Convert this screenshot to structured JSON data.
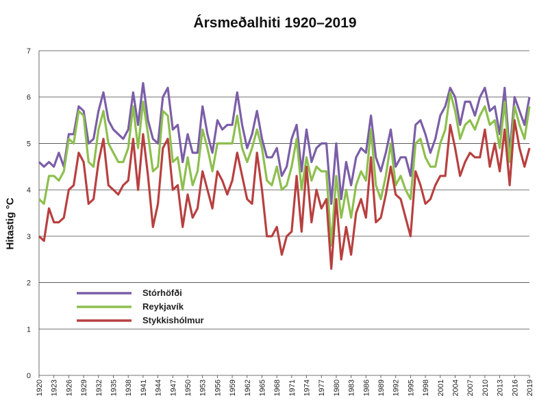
{
  "chart_data": {
    "type": "line",
    "title": "Ársmeðalhiti 1920–2019",
    "ylabel": "Hitastig °C",
    "xlabel": "",
    "ylim": [
      0,
      7
    ],
    "yticks": [
      0,
      1,
      2,
      3,
      4,
      5,
      6,
      7
    ],
    "xlim": [
      1920,
      2019
    ],
    "xticks": [
      1920,
      1923,
      1926,
      1929,
      1932,
      1935,
      1938,
      1941,
      1944,
      1947,
      1950,
      1953,
      1956,
      1959,
      1962,
      1965,
      1968,
      1971,
      1974,
      1977,
      1980,
      1983,
      1986,
      1989,
      1992,
      1995,
      1998,
      2001,
      2004,
      2007,
      2010,
      2013,
      2016,
      2019
    ],
    "grid": "horizontal",
    "legend_position": "bottom-left",
    "x": [
      1920,
      1921,
      1922,
      1923,
      1924,
      1925,
      1926,
      1927,
      1928,
      1929,
      1930,
      1931,
      1932,
      1933,
      1934,
      1935,
      1936,
      1937,
      1938,
      1939,
      1940,
      1941,
      1942,
      1943,
      1944,
      1945,
      1946,
      1947,
      1948,
      1949,
      1950,
      1951,
      1952,
      1953,
      1954,
      1955,
      1956,
      1957,
      1958,
      1959,
      1960,
      1961,
      1962,
      1963,
      1964,
      1965,
      1966,
      1967,
      1968,
      1969,
      1970,
      1971,
      1972,
      1973,
      1974,
      1975,
      1976,
      1977,
      1978,
      1979,
      1980,
      1981,
      1982,
      1983,
      1984,
      1985,
      1986,
      1987,
      1988,
      1989,
      1990,
      1991,
      1992,
      1993,
      1994,
      1995,
      1996,
      1997,
      1998,
      1999,
      2000,
      2001,
      2002,
      2003,
      2004,
      2005,
      2006,
      2007,
      2008,
      2009,
      2010,
      2011,
      2012,
      2013,
      2014,
      2015,
      2016,
      2017,
      2018,
      2019
    ],
    "series": [
      {
        "name": "Stórhöfði",
        "color": "#7b5ea7",
        "values": [
          4.6,
          4.5,
          4.6,
          4.5,
          4.8,
          4.5,
          5.2,
          5.2,
          5.8,
          5.7,
          5.0,
          5.1,
          5.7,
          6.1,
          5.5,
          5.3,
          5.2,
          5.1,
          5.3,
          6.1,
          5.4,
          6.3,
          5.5,
          5.1,
          5.0,
          6.0,
          6.2,
          5.3,
          5.4,
          4.6,
          5.2,
          4.8,
          4.8,
          5.8,
          5.2,
          4.8,
          5.5,
          5.3,
          5.4,
          5.4,
          6.1,
          5.4,
          4.9,
          5.2,
          5.7,
          5.1,
          4.7,
          4.7,
          4.9,
          4.3,
          4.5,
          5.1,
          5.4,
          4.4,
          5.3,
          4.6,
          4.9,
          5.0,
          5.0,
          3.7,
          5.0,
          3.8,
          4.6,
          4.1,
          4.7,
          4.9,
          4.8,
          5.6,
          4.7,
          4.4,
          4.8,
          5.3,
          4.5,
          4.7,
          4.7,
          4.3,
          5.4,
          5.5,
          5.2,
          4.8,
          5.1,
          5.6,
          5.8,
          6.2,
          6.0,
          5.4,
          5.9,
          5.9,
          5.6,
          6.0,
          6.2,
          5.7,
          5.8,
          5.2,
          6.2,
          4.8,
          6.0,
          5.7,
          5.4,
          6.0
        ]
      },
      {
        "name": "Reykjavík",
        "color": "#8dbf4e",
        "values": [
          3.8,
          3.7,
          4.3,
          4.3,
          4.2,
          4.4,
          5.1,
          5.0,
          5.7,
          5.6,
          4.6,
          4.5,
          5.3,
          5.7,
          5.0,
          4.8,
          4.6,
          4.6,
          4.9,
          5.8,
          4.9,
          5.9,
          5.2,
          4.4,
          4.5,
          5.7,
          5.6,
          4.6,
          4.7,
          4.0,
          4.7,
          4.1,
          4.4,
          5.3,
          4.9,
          4.4,
          5.0,
          5.0,
          5.0,
          5.0,
          5.6,
          4.9,
          4.6,
          4.9,
          5.3,
          4.9,
          4.2,
          4.1,
          4.5,
          4.0,
          4.1,
          4.5,
          5.1,
          4.0,
          4.7,
          4.2,
          4.5,
          4.4,
          4.4,
          2.8,
          4.3,
          3.4,
          4.0,
          3.4,
          4.1,
          4.4,
          4.2,
          5.3,
          4.1,
          3.8,
          4.3,
          5.0,
          4.1,
          4.3,
          4.0,
          3.8,
          5.0,
          5.1,
          4.7,
          4.5,
          4.5,
          5.0,
          5.3,
          6.1,
          5.7,
          5.1,
          5.4,
          5.5,
          5.3,
          5.6,
          5.8,
          5.4,
          5.5,
          4.9,
          5.9,
          4.6,
          5.8,
          5.4,
          5.1,
          5.8
        ]
      },
      {
        "name": "Stykkishólmur",
        "color": "#b84040",
        "values": [
          3.0,
          2.9,
          3.6,
          3.3,
          3.3,
          3.4,
          4.0,
          4.1,
          4.8,
          4.6,
          3.7,
          3.8,
          4.6,
          5.1,
          4.1,
          4.0,
          3.9,
          4.1,
          4.2,
          5.1,
          4.0,
          5.2,
          4.3,
          3.2,
          3.7,
          4.9,
          5.1,
          4.0,
          4.1,
          3.2,
          3.9,
          3.4,
          3.6,
          4.4,
          4.0,
          3.6,
          4.4,
          4.2,
          3.9,
          4.2,
          4.8,
          4.3,
          3.8,
          3.7,
          4.8,
          4.0,
          3.0,
          3.0,
          3.2,
          2.6,
          3.0,
          3.1,
          4.3,
          3.1,
          4.5,
          3.3,
          4.0,
          3.6,
          3.8,
          2.3,
          3.8,
          2.5,
          3.2,
          2.6,
          3.5,
          3.8,
          3.4,
          4.7,
          3.3,
          3.4,
          3.9,
          4.5,
          3.9,
          3.8,
          3.4,
          3.0,
          4.4,
          4.1,
          3.7,
          3.8,
          4.1,
          4.3,
          4.3,
          5.4,
          4.9,
          4.3,
          4.6,
          4.8,
          4.7,
          4.7,
          5.3,
          4.5,
          5.0,
          4.4,
          5.3,
          4.1,
          5.5,
          4.9,
          4.5,
          4.9
        ]
      }
    ]
  }
}
